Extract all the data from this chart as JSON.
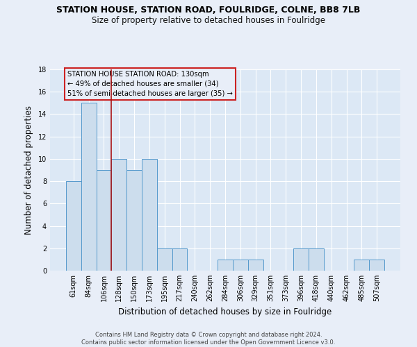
{
  "title": "STATION HOUSE, STATION ROAD, FOULRIDGE, COLNE, BB8 7LB",
  "subtitle": "Size of property relative to detached houses in Foulridge",
  "xlabel": "Distribution of detached houses by size in Foulridge",
  "ylabel": "Number of detached properties",
  "footer_line1": "Contains HM Land Registry data © Crown copyright and database right 2024.",
  "footer_line2": "Contains public sector information licensed under the Open Government Licence v3.0.",
  "categories": [
    "61sqm",
    "84sqm",
    "106sqm",
    "128sqm",
    "150sqm",
    "173sqm",
    "195sqm",
    "217sqm",
    "240sqm",
    "262sqm",
    "284sqm",
    "306sqm",
    "329sqm",
    "351sqm",
    "373sqm",
    "396sqm",
    "418sqm",
    "440sqm",
    "462sqm",
    "485sqm",
    "507sqm"
  ],
  "values": [
    8,
    15,
    9,
    10,
    9,
    10,
    2,
    2,
    0,
    0,
    1,
    1,
    1,
    0,
    0,
    2,
    2,
    0,
    0,
    1,
    1
  ],
  "bar_color": "#ccdded",
  "bar_edge_color": "#5599cc",
  "vline_index": 3,
  "vline_color": "#aa1111",
  "annotation_text_line1": "STATION HOUSE STATION ROAD: 130sqm",
  "annotation_text_line2": "← 49% of detached houses are smaller (34)",
  "annotation_text_line3": "51% of semi-detached houses are larger (35) →",
  "annotation_box_color": "#cc2222",
  "ylim": [
    0,
    18
  ],
  "yticks": [
    0,
    2,
    4,
    6,
    8,
    10,
    12,
    14,
    16,
    18
  ],
  "bg_color": "#e8eef8",
  "grid_color": "#ffffff",
  "plot_bg_color": "#dce8f5"
}
